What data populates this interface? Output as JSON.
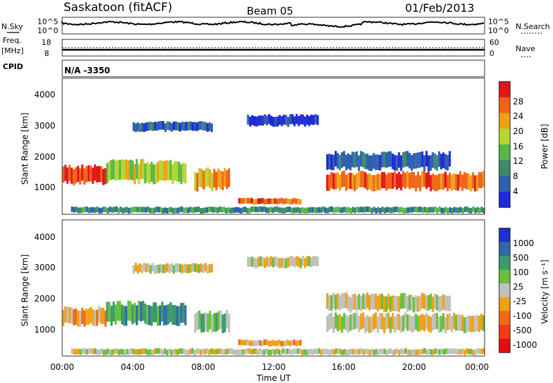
{
  "header": {
    "station": "Saskatoon (fitACF)",
    "beam": "Beam 05",
    "date": "01/Feb/2013"
  },
  "noise_panel": {
    "left_label": "N.Sky",
    "right_label": "N.Search",
    "left_ticks": [
      "10^5",
      "10^0"
    ],
    "right_ticks": [
      "10^5",
      "10^0"
    ]
  },
  "freq_panel": {
    "left_label": "Freq.",
    "left_unit": "[MHz]",
    "left_ticks": [
      "18",
      "8"
    ],
    "right_label": "Nave",
    "right_ticks": [
      "60",
      "0"
    ]
  },
  "cpid": {
    "label": "CPID",
    "value": "N/A -3350"
  },
  "chart_data": [
    {
      "type": "heatmap",
      "parameter": "Power",
      "ylabel": "Slant Range [km]",
      "xlabel": "",
      "x_range_hours": [
        0,
        24
      ],
      "ylim": [
        180,
        4560
      ],
      "y_ticks": [
        "1000",
        "2000",
        "3000",
        "4000"
      ],
      "colorbar": {
        "label": "Power [dB]",
        "ticks": [
          "4",
          "8",
          "12",
          "16",
          "20",
          "24",
          "28"
        ],
        "colors": [
          "#1f2bd6",
          "#2f5fb0",
          "#3c8a6a",
          "#56b848",
          "#b5d630",
          "#f0a018",
          "#f06418",
          "#e01818"
        ]
      }
    },
    {
      "type": "heatmap",
      "parameter": "Velocity",
      "ylabel": "Slant Range [km]",
      "xlabel": "Time UT",
      "x_range_hours": [
        0,
        24
      ],
      "x_ticks": [
        "00:00",
        "04:00",
        "08:00",
        "12:00",
        "16:00",
        "20:00",
        "00:00"
      ],
      "ylim": [
        180,
        4560
      ],
      "y_ticks": [
        "1000",
        "2000",
        "3000",
        "4000"
      ],
      "colorbar": {
        "label": "Velocity [m s⁻¹]",
        "ticks": [
          "1000",
          "500",
          "100",
          "25",
          "-25",
          "-100",
          "-500",
          "-1000"
        ],
        "colors": [
          "#2030c8",
          "#2e6aa8",
          "#3a9a6a",
          "#66c03a",
          "#c0c0bc",
          "#f0a018",
          "#f06a14",
          "#f03c14",
          "#e01010"
        ]
      }
    }
  ]
}
